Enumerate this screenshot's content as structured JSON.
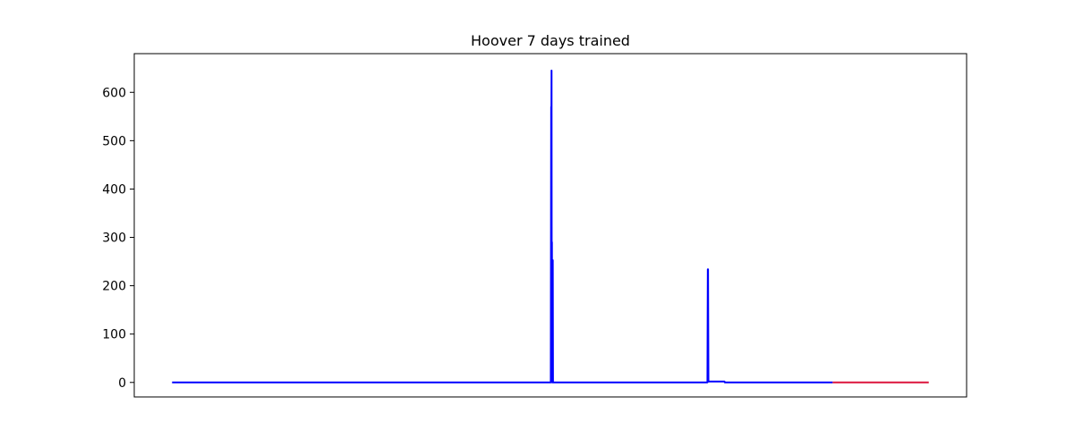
{
  "chart_data": {
    "type": "line",
    "title": "Hoover 7 days trained",
    "xlabel": "",
    "ylabel": "",
    "x_ticks_shown": false,
    "xlim": [
      -0.05,
      1.05
    ],
    "ylim": [
      -30,
      680
    ],
    "yticks": [
      0,
      100,
      200,
      300,
      400,
      500,
      600
    ],
    "ytick_labels": [
      "0",
      "100",
      "200",
      "300",
      "400",
      "500",
      "600"
    ],
    "grid": false,
    "legend": "none",
    "series": [
      {
        "color": "#0000ff",
        "points": [
          [
            0.0,
            0
          ],
          [
            0.5005,
            0
          ],
          [
            0.501,
            570
          ],
          [
            0.5013,
            560
          ],
          [
            0.5015,
            645
          ],
          [
            0.5018,
            10
          ],
          [
            0.502,
            290
          ],
          [
            0.5023,
            0
          ],
          [
            0.5028,
            0
          ],
          [
            0.5031,
            253
          ],
          [
            0.5034,
            0
          ],
          [
            0.7075,
            0
          ],
          [
            0.708,
            234
          ],
          [
            0.7083,
            234
          ],
          [
            0.7088,
            2
          ],
          [
            0.73,
            2
          ],
          [
            0.7305,
            0
          ],
          [
            0.873,
            0
          ]
        ]
      },
      {
        "color": "#dc143c",
        "points": [
          [
            0.873,
            0
          ],
          [
            1.0,
            0
          ]
        ]
      }
    ]
  }
}
